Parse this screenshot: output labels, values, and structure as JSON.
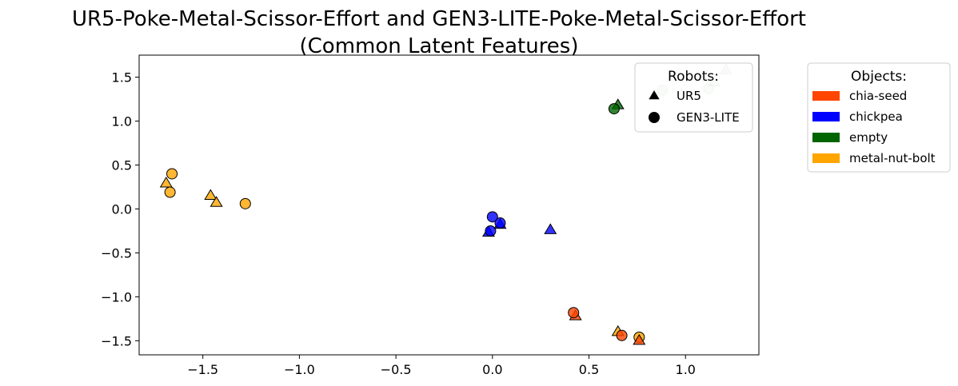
{
  "chart_data": {
    "type": "scatter",
    "title_lines": [
      "UR5-Poke-Metal-Scissor-Effort and GEN3-LITE-Poke-Metal-Scissor-Effort",
      "(Common Latent Features)"
    ],
    "xlabel": "",
    "ylabel": "",
    "xlim": [
      -1.83,
      1.38
    ],
    "ylim": [
      -1.66,
      1.75
    ],
    "x_ticks": [
      -1.5,
      -1.0,
      -0.5,
      0.0,
      0.5,
      1.0
    ],
    "y_ticks": [
      -1.5,
      -1.0,
      -0.5,
      0.0,
      0.5,
      1.0,
      1.5
    ],
    "x_tick_labels": [
      "−1.5",
      "−1.0",
      "−0.5",
      "0.0",
      "0.5",
      "1.0"
    ],
    "y_tick_labels": [
      "−1.5",
      "−1.0",
      "−0.5",
      "0.0",
      "0.5",
      "1.0",
      "1.5"
    ],
    "grid": false,
    "objects": [
      {
        "name": "chia-seed",
        "color": "#ff4500"
      },
      {
        "name": "chickpea",
        "color": "#0000ff"
      },
      {
        "name": "empty",
        "color": "#006400"
      },
      {
        "name": "metal-nut-bolt",
        "color": "#ffa500"
      }
    ],
    "robots": [
      {
        "name": "UR5",
        "marker": "triangle"
      },
      {
        "name": "GEN3-LITE",
        "marker": "circle"
      }
    ],
    "legend_robots": {
      "title": "Robots:",
      "placement": "upper-right-inside"
    },
    "legend_objects": {
      "title": "Objects:",
      "placement": "outside-right"
    },
    "points": [
      {
        "x": 1.21,
        "y": 1.58,
        "robot": "UR5",
        "object": "empty",
        "faded": true
      },
      {
        "x": 1.15,
        "y": 1.44,
        "robot": "UR5",
        "object": "empty",
        "faded": true
      },
      {
        "x": 0.98,
        "y": 1.3,
        "robot": "UR5",
        "object": "empty",
        "faded": true
      },
      {
        "x": 0.88,
        "y": 1.35,
        "robot": "GEN3-LITE",
        "object": "empty",
        "faded": true
      },
      {
        "x": 1.12,
        "y": 1.37,
        "robot": "GEN3-LITE",
        "object": "empty",
        "faded": true
      },
      {
        "x": 0.65,
        "y": 1.18,
        "robot": "UR5",
        "object": "empty"
      },
      {
        "x": 0.63,
        "y": 1.14,
        "robot": "GEN3-LITE",
        "object": "empty"
      },
      {
        "x": -1.69,
        "y": 0.29,
        "robot": "UR5",
        "object": "metal-nut-bolt"
      },
      {
        "x": -1.46,
        "y": 0.15,
        "robot": "UR5",
        "object": "metal-nut-bolt"
      },
      {
        "x": -1.43,
        "y": 0.07,
        "robot": "UR5",
        "object": "metal-nut-bolt"
      },
      {
        "x": -1.66,
        "y": 0.4,
        "robot": "GEN3-LITE",
        "object": "metal-nut-bolt"
      },
      {
        "x": -1.67,
        "y": 0.19,
        "robot": "GEN3-LITE",
        "object": "metal-nut-bolt"
      },
      {
        "x": -1.28,
        "y": 0.06,
        "robot": "GEN3-LITE",
        "object": "metal-nut-bolt"
      },
      {
        "x": 0.65,
        "y": -1.4,
        "robot": "UR5",
        "object": "metal-nut-bolt"
      },
      {
        "x": 0.76,
        "y": -1.46,
        "robot": "GEN3-LITE",
        "object": "metal-nut-bolt"
      },
      {
        "x": -0.02,
        "y": -0.27,
        "robot": "UR5",
        "object": "chickpea"
      },
      {
        "x": 0.04,
        "y": -0.18,
        "robot": "UR5",
        "object": "chickpea"
      },
      {
        "x": 0.3,
        "y": -0.24,
        "robot": "UR5",
        "object": "chickpea"
      },
      {
        "x": 0.0,
        "y": -0.09,
        "robot": "GEN3-LITE",
        "object": "chickpea"
      },
      {
        "x": -0.01,
        "y": -0.25,
        "robot": "GEN3-LITE",
        "object": "chickpea"
      },
      {
        "x": 0.04,
        "y": -0.16,
        "robot": "GEN3-LITE",
        "object": "chickpea"
      },
      {
        "x": 0.43,
        "y": -1.22,
        "robot": "UR5",
        "object": "chia-seed"
      },
      {
        "x": 0.76,
        "y": -1.5,
        "robot": "UR5",
        "object": "chia-seed"
      },
      {
        "x": 0.42,
        "y": -1.18,
        "robot": "GEN3-LITE",
        "object": "chia-seed"
      },
      {
        "x": 0.67,
        "y": -1.44,
        "robot": "GEN3-LITE",
        "object": "chia-seed"
      }
    ]
  }
}
